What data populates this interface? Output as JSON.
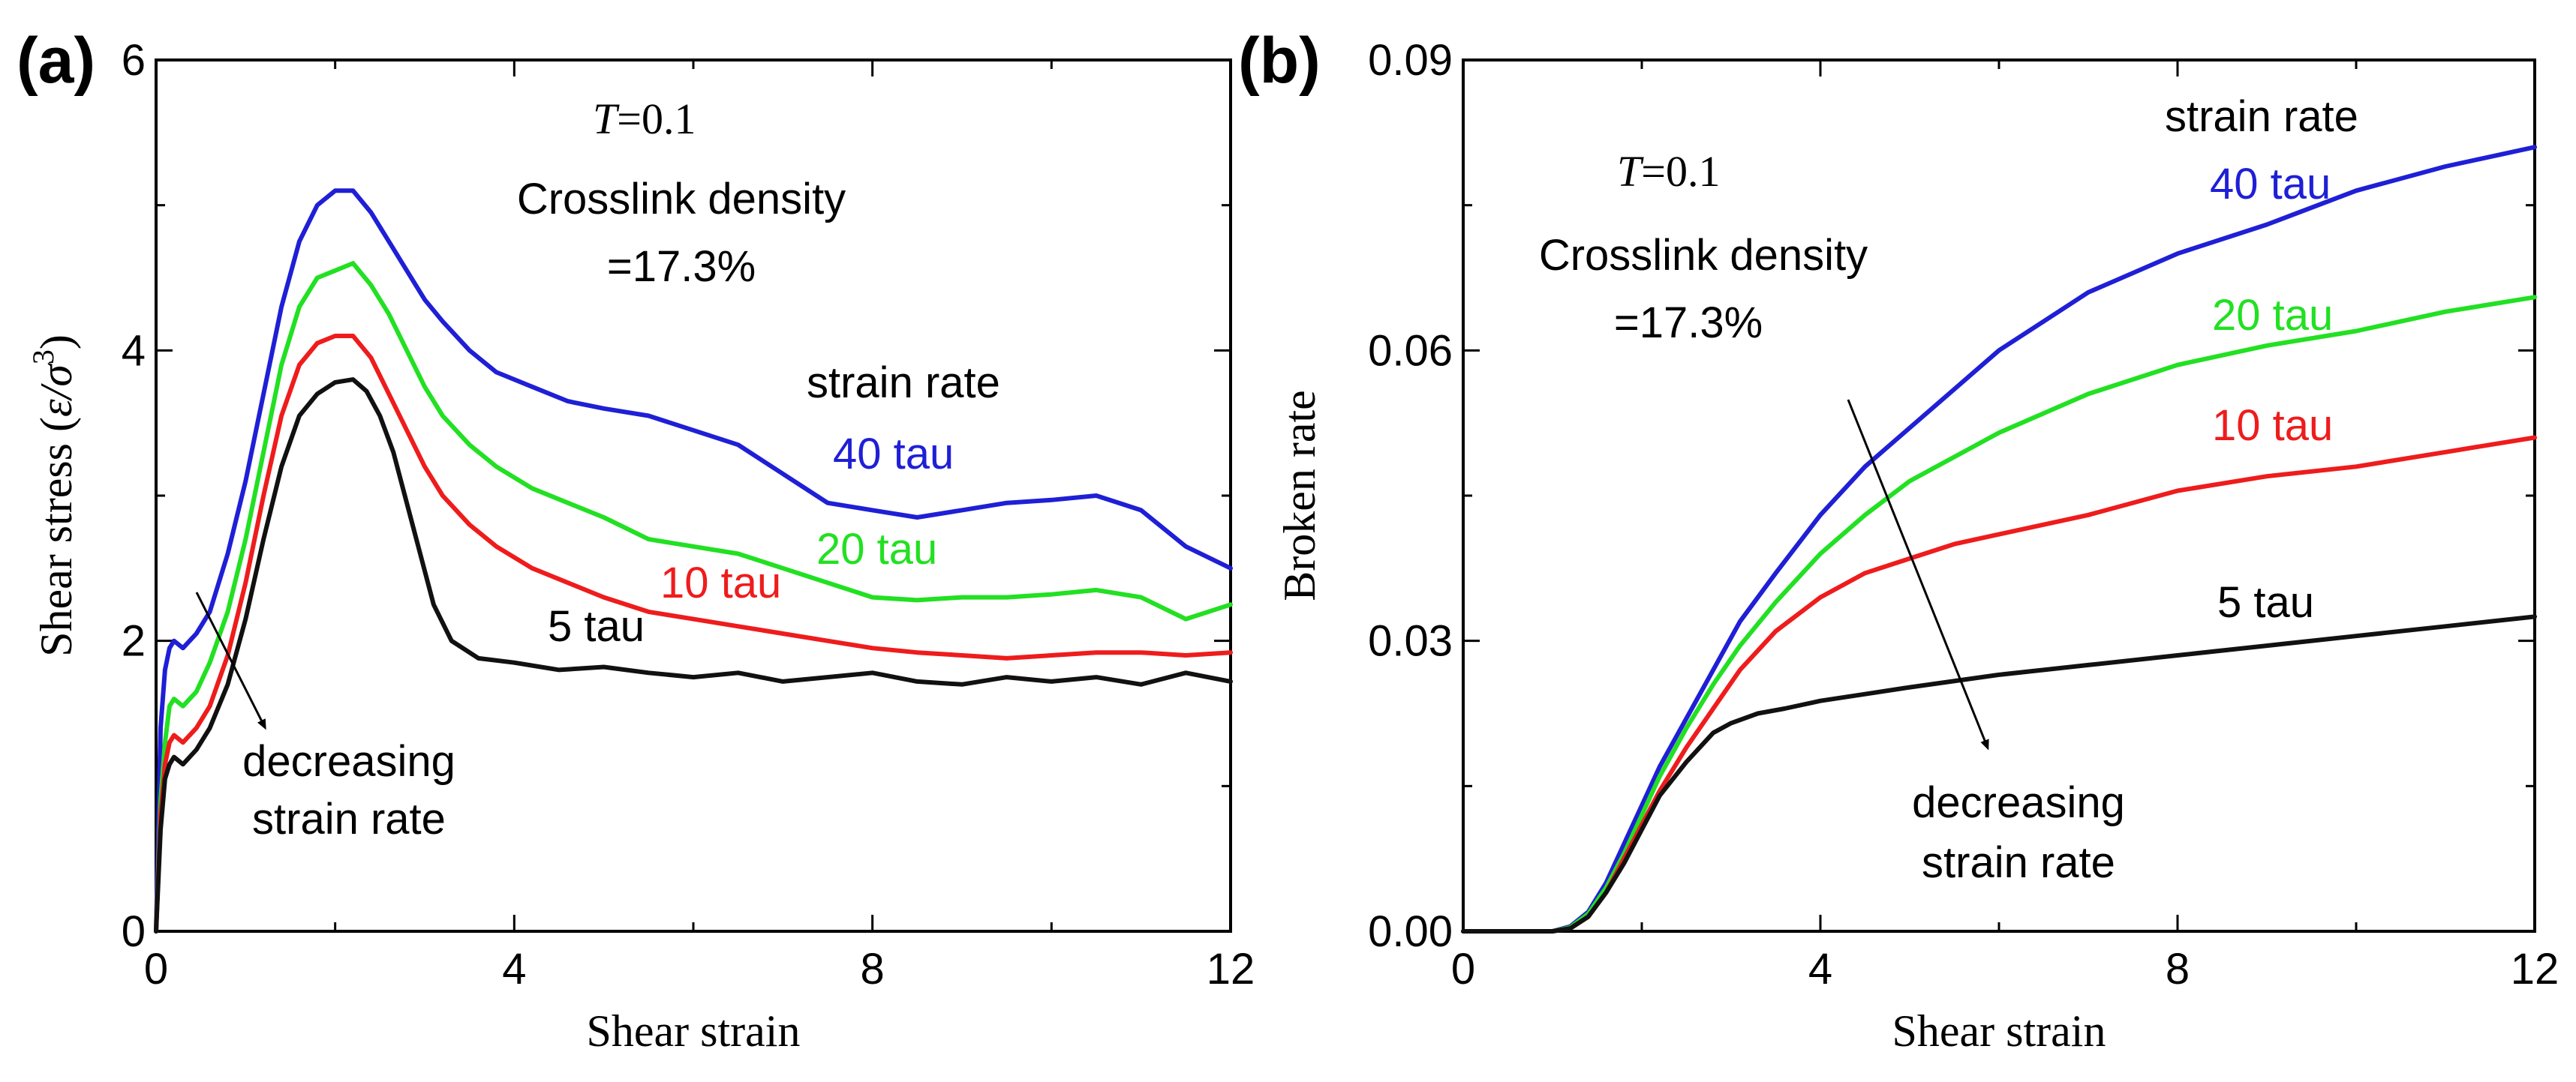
{
  "chart_data": [
    {
      "panel_label": "(a)",
      "type": "line",
      "xlabel": "Shear strain",
      "ylabel": "Shear stress (ε/σ³)",
      "ylabel_main": "Shear stress (",
      "ylabel_eps": "ε/σ",
      "ylabel_exp": "3",
      "ylabel_close": ")",
      "xlim": [
        0,
        12
      ],
      "ylim": [
        0,
        6
      ],
      "xticks": [
        "0",
        "4",
        "8",
        "12"
      ],
      "yticks": [
        "0",
        "2",
        "4",
        "6"
      ],
      "annotations": {
        "temp_italic": "T",
        "temp_value": "=0.1",
        "density_line1": "Crosslink density",
        "density_line2": "=17.3%",
        "legend_title": "strain rate",
        "arrow_line1": "decreasing",
        "arrow_line2": "strain rate"
      },
      "series": [
        {
          "name": "40 tau",
          "color": "#1f1fd6",
          "x": [
            0,
            0.05,
            0.1,
            0.15,
            0.2,
            0.3,
            0.45,
            0.6,
            0.8,
            1.0,
            1.2,
            1.4,
            1.6,
            1.8,
            2.0,
            2.2,
            2.4,
            2.6,
            2.8,
            3.0,
            3.2,
            3.5,
            3.8,
            4.2,
            4.6,
            5.0,
            5.5,
            6.0,
            6.5,
            7.0,
            7.5,
            8.0,
            8.5,
            9.0,
            9.5,
            10.0,
            10.5,
            11.0,
            11.5,
            12.0
          ],
          "y": [
            0,
            1.4,
            1.8,
            1.95,
            2.0,
            1.95,
            2.05,
            2.2,
            2.6,
            3.1,
            3.7,
            4.3,
            4.75,
            5.0,
            5.1,
            5.1,
            4.95,
            4.75,
            4.55,
            4.35,
            4.2,
            4.0,
            3.85,
            3.75,
            3.65,
            3.6,
            3.55,
            3.45,
            3.35,
            3.15,
            2.95,
            2.9,
            2.85,
            2.9,
            2.95,
            2.97,
            3.0,
            2.9,
            2.65,
            2.5
          ]
        },
        {
          "name": "20 tau",
          "color": "#22e022",
          "x": [
            0,
            0.05,
            0.1,
            0.15,
            0.2,
            0.3,
            0.45,
            0.6,
            0.8,
            1.0,
            1.2,
            1.4,
            1.6,
            1.8,
            2.0,
            2.2,
            2.4,
            2.6,
            2.8,
            3.0,
            3.2,
            3.5,
            3.8,
            4.2,
            4.6,
            5.0,
            5.5,
            6.0,
            6.5,
            7.0,
            7.5,
            8.0,
            8.5,
            9.0,
            9.5,
            10.0,
            10.5,
            11.0,
            11.5,
            12.0
          ],
          "y": [
            0,
            0.9,
            1.3,
            1.55,
            1.6,
            1.55,
            1.65,
            1.85,
            2.2,
            2.7,
            3.3,
            3.9,
            4.3,
            4.5,
            4.55,
            4.6,
            4.45,
            4.25,
            4.0,
            3.75,
            3.55,
            3.35,
            3.2,
            3.05,
            2.95,
            2.85,
            2.7,
            2.65,
            2.6,
            2.5,
            2.4,
            2.3,
            2.28,
            2.3,
            2.3,
            2.32,
            2.35,
            2.3,
            2.15,
            2.25
          ]
        },
        {
          "name": "10 tau",
          "color": "#ee1c1c",
          "x": [
            0,
            0.05,
            0.1,
            0.15,
            0.2,
            0.3,
            0.45,
            0.6,
            0.8,
            1.0,
            1.2,
            1.4,
            1.6,
            1.8,
            2.0,
            2.2,
            2.4,
            2.6,
            2.8,
            3.0,
            3.2,
            3.5,
            3.8,
            4.2,
            4.6,
            5.0,
            5.5,
            6.0,
            6.5,
            7.0,
            7.5,
            8.0,
            8.5,
            9.0,
            9.5,
            10.0,
            10.5,
            11.0,
            11.5,
            12.0
          ],
          "y": [
            0,
            0.8,
            1.15,
            1.3,
            1.35,
            1.3,
            1.4,
            1.55,
            1.9,
            2.4,
            3.0,
            3.55,
            3.9,
            4.05,
            4.1,
            4.1,
            3.95,
            3.7,
            3.45,
            3.2,
            3.0,
            2.8,
            2.65,
            2.5,
            2.4,
            2.3,
            2.2,
            2.15,
            2.1,
            2.05,
            2.0,
            1.95,
            1.92,
            1.9,
            1.88,
            1.9,
            1.92,
            1.92,
            1.9,
            1.92
          ]
        },
        {
          "name": "5 tau",
          "color": "#111111",
          "x": [
            0,
            0.05,
            0.1,
            0.15,
            0.2,
            0.3,
            0.45,
            0.6,
            0.8,
            1.0,
            1.2,
            1.4,
            1.6,
            1.8,
            2.0,
            2.2,
            2.35,
            2.5,
            2.65,
            2.8,
            2.95,
            3.1,
            3.3,
            3.6,
            4.0,
            4.5,
            5.0,
            5.5,
            6.0,
            6.5,
            7.0,
            7.5,
            8.0,
            8.5,
            9.0,
            9.5,
            10.0,
            10.5,
            11.0,
            11.5,
            12.0
          ],
          "y": [
            0,
            0.7,
            1.05,
            1.15,
            1.2,
            1.15,
            1.25,
            1.4,
            1.7,
            2.15,
            2.7,
            3.2,
            3.55,
            3.7,
            3.78,
            3.8,
            3.72,
            3.55,
            3.3,
            2.95,
            2.6,
            2.25,
            2.0,
            1.88,
            1.85,
            1.8,
            1.82,
            1.78,
            1.75,
            1.78,
            1.72,
            1.75,
            1.78,
            1.72,
            1.7,
            1.75,
            1.72,
            1.75,
            1.7,
            1.78,
            1.72
          ]
        }
      ]
    },
    {
      "panel_label": "(b)",
      "type": "line",
      "xlabel": "Shear strain",
      "ylabel": "Broken rate",
      "xlim": [
        0,
        12
      ],
      "ylim": [
        0,
        0.09
      ],
      "xticks": [
        "0",
        "4",
        "8",
        "12"
      ],
      "yticks": [
        "0.00",
        "0.03",
        "0.06",
        "0.09"
      ],
      "annotations": {
        "temp_italic": "T",
        "temp_value": "=0.1",
        "density_line1": "Crosslink density",
        "density_line2": "=17.3%",
        "legend_title": "strain rate",
        "arrow_line1": "decreasing",
        "arrow_line2": "strain rate"
      },
      "series": [
        {
          "name": "40 tau",
          "color": "#1f1fd6",
          "x": [
            0,
            1.0,
            1.2,
            1.4,
            1.6,
            1.8,
            2.0,
            2.2,
            2.5,
            2.8,
            3.1,
            3.5,
            4.0,
            4.5,
            5.0,
            5.5,
            6.0,
            6.5,
            7.0,
            8.0,
            9.0,
            10.0,
            11.0,
            12.0
          ],
          "y": [
            0,
            0,
            0.0005,
            0.002,
            0.005,
            0.009,
            0.013,
            0.017,
            0.022,
            0.027,
            0.032,
            0.037,
            0.043,
            0.048,
            0.052,
            0.056,
            0.06,
            0.063,
            0.066,
            0.07,
            0.073,
            0.0765,
            0.079,
            0.081
          ]
        },
        {
          "name": "20 tau",
          "color": "#22e022",
          "x": [
            0,
            1.0,
            1.2,
            1.4,
            1.6,
            1.8,
            2.0,
            2.2,
            2.5,
            2.8,
            3.1,
            3.5,
            4.0,
            4.5,
            5.0,
            5.5,
            6.0,
            6.5,
            7.0,
            8.0,
            9.0,
            10.0,
            11.0,
            12.0
          ],
          "y": [
            0,
            0,
            0.0004,
            0.0018,
            0.0045,
            0.008,
            0.012,
            0.016,
            0.021,
            0.0255,
            0.0295,
            0.034,
            0.039,
            0.043,
            0.0465,
            0.049,
            0.0515,
            0.0535,
            0.0555,
            0.0585,
            0.0605,
            0.062,
            0.064,
            0.0655
          ]
        },
        {
          "name": "10 tau",
          "color": "#ee1c1c",
          "x": [
            0,
            1.0,
            1.2,
            1.4,
            1.6,
            1.8,
            2.0,
            2.2,
            2.5,
            2.8,
            3.1,
            3.5,
            4.0,
            4.5,
            5.0,
            5.5,
            6.0,
            6.5,
            7.0,
            8.0,
            9.0,
            10.0,
            11.0,
            12.0
          ],
          "y": [
            0,
            0,
            0.0003,
            0.0015,
            0.004,
            0.0075,
            0.011,
            0.0145,
            0.019,
            0.023,
            0.027,
            0.031,
            0.0345,
            0.037,
            0.0385,
            0.04,
            0.041,
            0.042,
            0.043,
            0.0455,
            0.047,
            0.048,
            0.0495,
            0.051
          ]
        },
        {
          "name": "5 tau",
          "color": "#111111",
          "x": [
            0,
            1.0,
            1.2,
            1.4,
            1.6,
            1.8,
            2.0,
            2.2,
            2.5,
            2.8,
            3.0,
            3.3,
            3.6,
            4.0,
            4.5,
            5.0,
            6.0,
            7.0,
            8.0,
            9.0,
            10.0,
            11.0,
            12.0
          ],
          "y": [
            0,
            0,
            0.0003,
            0.0015,
            0.004,
            0.007,
            0.0105,
            0.014,
            0.0175,
            0.0205,
            0.0215,
            0.0225,
            0.023,
            0.0238,
            0.0245,
            0.0252,
            0.0265,
            0.0275,
            0.0285,
            0.0295,
            0.0305,
            0.0315,
            0.0325
          ]
        }
      ]
    }
  ]
}
